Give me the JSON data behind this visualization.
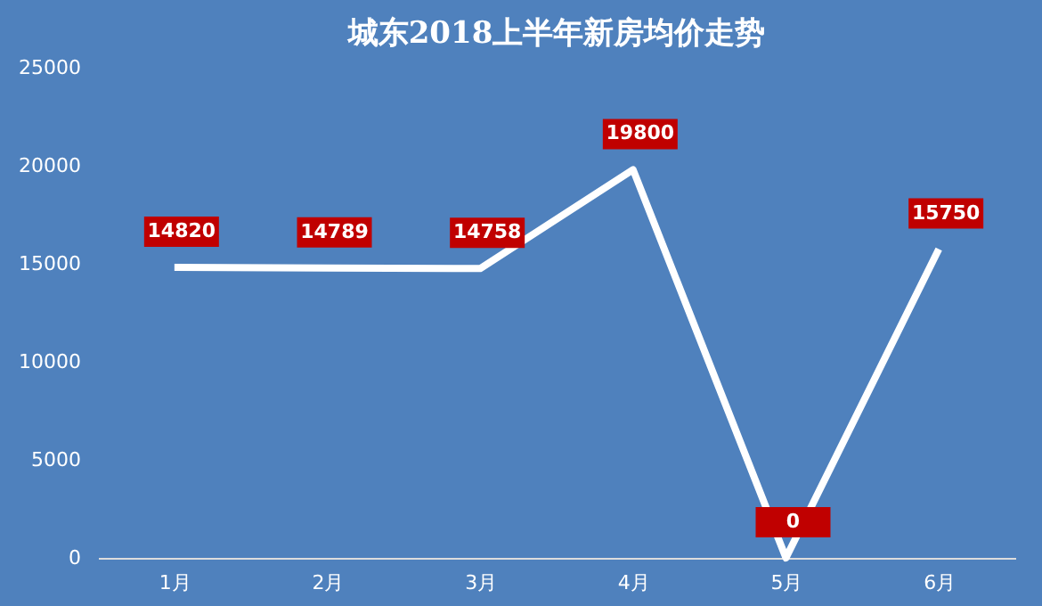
{
  "chart_data": {
    "type": "line",
    "title": "城东2018上半年新房均价走势",
    "categories": [
      "1月",
      "2月",
      "3月",
      "4月",
      "5月",
      "6月"
    ],
    "series": [
      {
        "color": "#ffffff",
        "values": [
          14820,
          14789,
          14758,
          19800,
          0,
          15750
        ]
      }
    ],
    "ylim": [
      0,
      25000
    ],
    "yticks": [
      0,
      5000,
      10000,
      15000,
      20000,
      25000
    ],
    "grid": false,
    "marker": "none",
    "line_style": "solid",
    "data_labels": true
  }
}
